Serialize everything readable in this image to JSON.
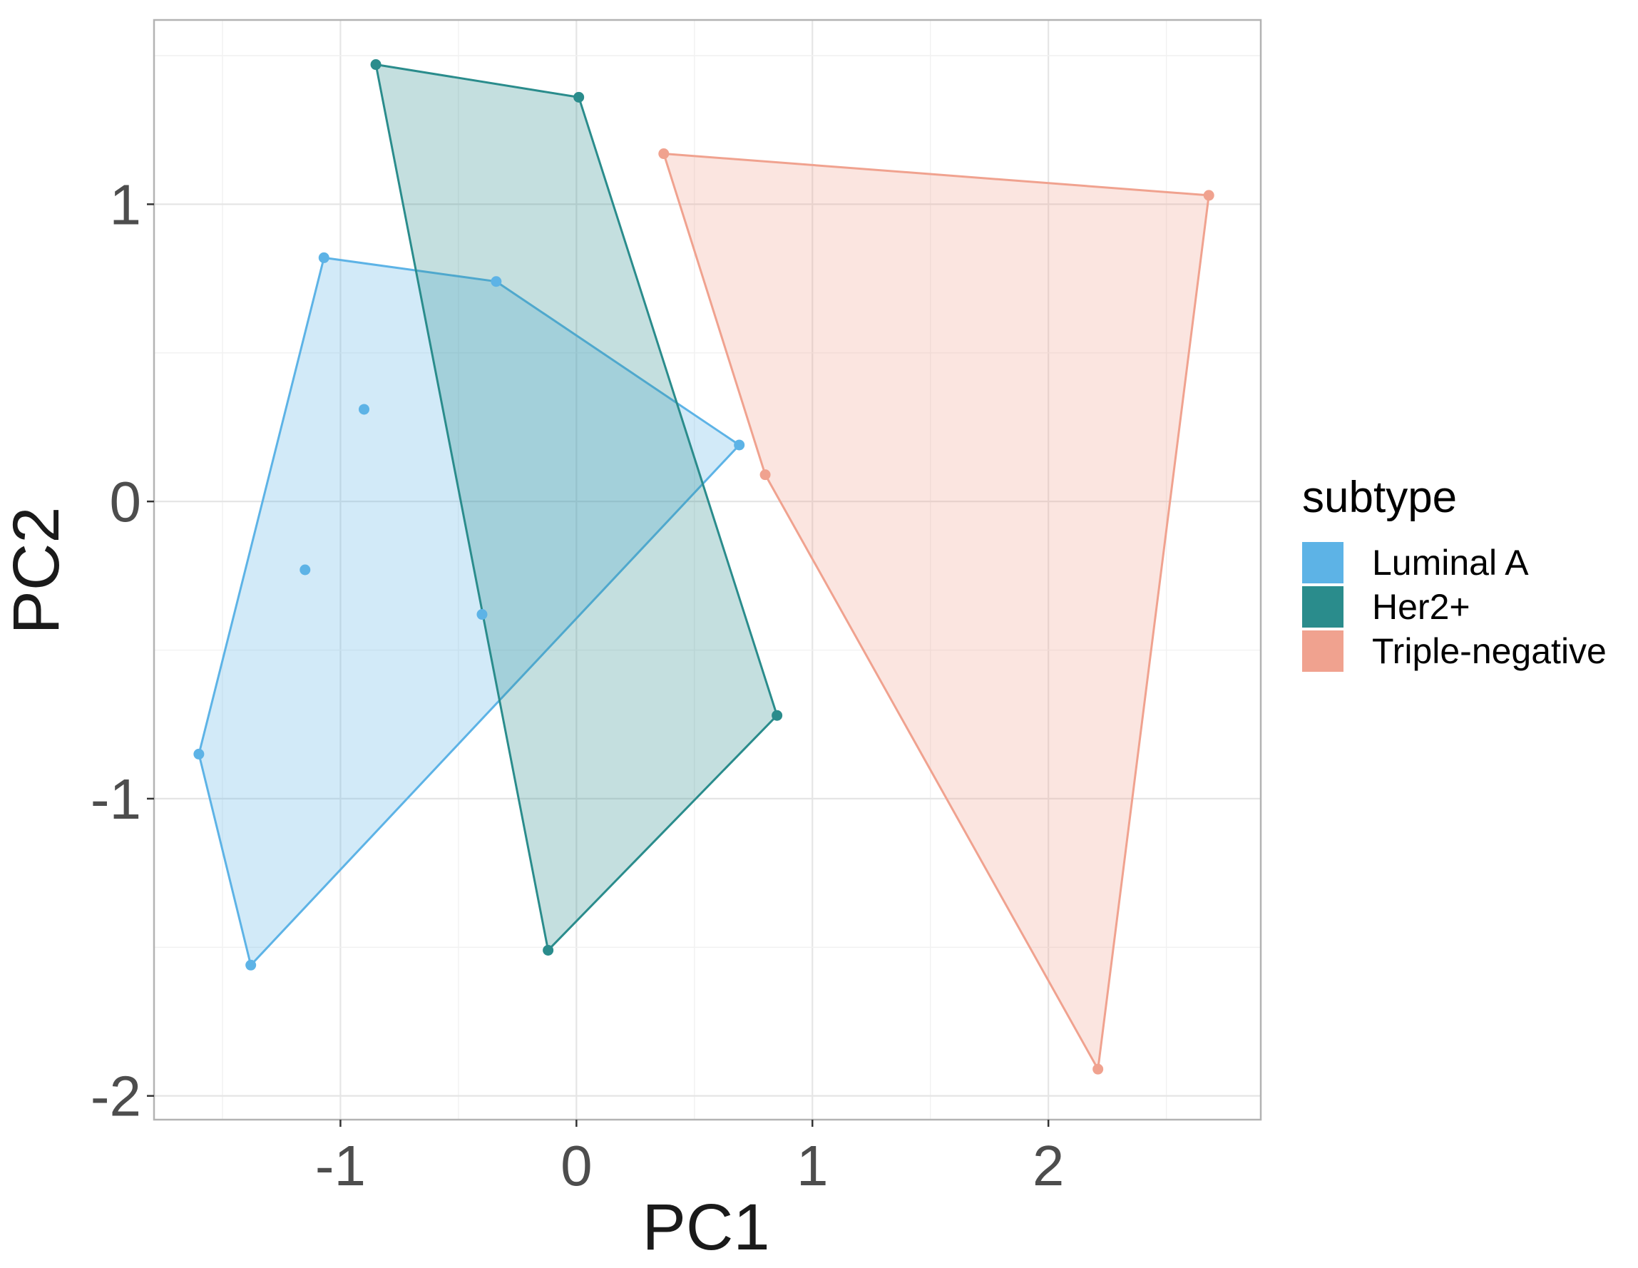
{
  "chart_data": {
    "type": "scatter",
    "subtype": "convex-hull",
    "title": "",
    "xlabel": "PC1",
    "ylabel": "PC2",
    "xlim": [
      -1.79,
      2.9
    ],
    "ylim": [
      -2.08,
      1.62
    ],
    "xticks": [
      -1,
      0,
      1,
      2
    ],
    "xtick_labels": [
      "-1",
      "0",
      "1",
      "2"
    ],
    "yticks": [
      -2,
      -1,
      0,
      1
    ],
    "ytick_labels": [
      "-2",
      "-1",
      "0",
      "1"
    ],
    "grid": true,
    "legend": {
      "title": "subtype",
      "position": "right"
    },
    "series": [
      {
        "name": "Luminal A",
        "color": "#5DB3E6",
        "points": [
          {
            "x": -1.07,
            "y": 0.82
          },
          {
            "x": -0.34,
            "y": 0.74
          },
          {
            "x": 0.69,
            "y": 0.19
          },
          {
            "x": -0.9,
            "y": 0.31
          },
          {
            "x": -1.15,
            "y": -0.23
          },
          {
            "x": -0.4,
            "y": -0.38
          },
          {
            "x": -1.6,
            "y": -0.85
          },
          {
            "x": -1.38,
            "y": -1.56
          }
        ],
        "hull": [
          {
            "x": -1.07,
            "y": 0.82
          },
          {
            "x": -0.34,
            "y": 0.74
          },
          {
            "x": 0.69,
            "y": 0.19
          },
          {
            "x": -1.38,
            "y": -1.56
          },
          {
            "x": -1.6,
            "y": -0.85
          }
        ]
      },
      {
        "name": "Her2+",
        "color": "#2A8C8C",
        "points": [
          {
            "x": -0.85,
            "y": 1.47
          },
          {
            "x": 0.01,
            "y": 1.36
          },
          {
            "x": 0.85,
            "y": -0.72
          },
          {
            "x": -0.12,
            "y": -1.51
          }
        ],
        "hull": [
          {
            "x": -0.85,
            "y": 1.47
          },
          {
            "x": 0.01,
            "y": 1.36
          },
          {
            "x": 0.85,
            "y": -0.72
          },
          {
            "x": -0.12,
            "y": -1.51
          }
        ]
      },
      {
        "name": "Triple-negative",
        "color": "#F0A28F",
        "points": [
          {
            "x": 0.37,
            "y": 1.17
          },
          {
            "x": 2.68,
            "y": 1.03
          },
          {
            "x": 2.21,
            "y": -1.91
          },
          {
            "x": 0.8,
            "y": 0.09
          }
        ],
        "hull": [
          {
            "x": 0.37,
            "y": 1.17
          },
          {
            "x": 2.68,
            "y": 1.03
          },
          {
            "x": 2.21,
            "y": -1.91
          },
          {
            "x": 0.8,
            "y": 0.09
          }
        ]
      }
    ]
  }
}
